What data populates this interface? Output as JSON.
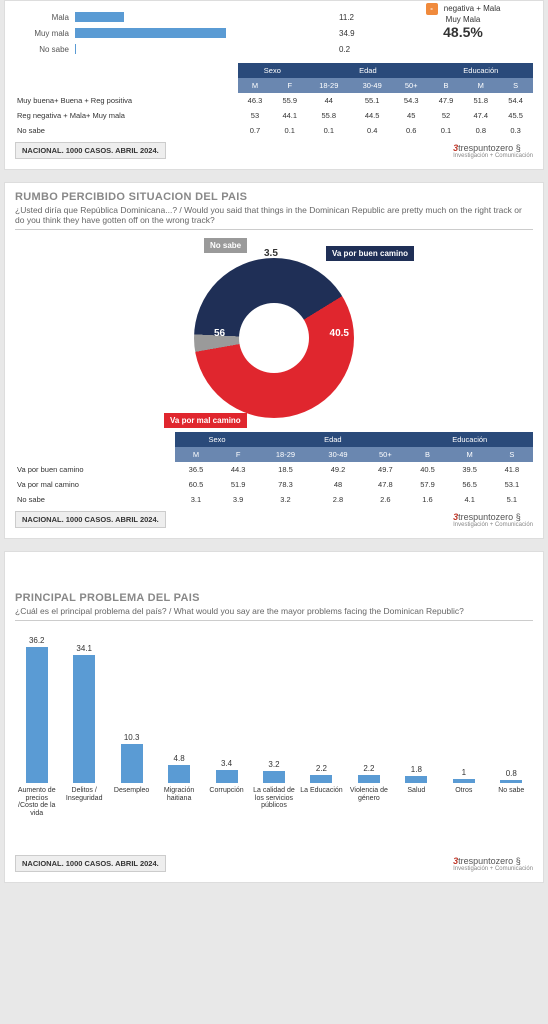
{
  "colors": {
    "bar_blue": "#5a9bd4",
    "donut_red": "#e0262e",
    "donut_navy": "#1f2f56",
    "donut_gray": "#9a9a9a",
    "th_dark": "#2a4a7a",
    "th_light": "#6a87b0",
    "orange": "#f08a3c"
  },
  "panel1": {
    "hbars": [
      {
        "label": "Mala",
        "value": 11.2,
        "color": "#5a9bd4"
      },
      {
        "label": "Muy mala",
        "value": 34.9,
        "color": "#5a9bd4"
      },
      {
        "label": "No sabe",
        "value": 0.2,
        "color": "#5a9bd4"
      }
    ],
    "summary": {
      "line1": "negativa + Mala",
      "line2": "Muy Mala",
      "value": "48.5%"
    },
    "table": {
      "groups": [
        "Sexo",
        "Edad",
        "Educación"
      ],
      "subs": [
        "M",
        "F",
        "18-29",
        "30-49",
        "50+",
        "B",
        "M",
        "S"
      ],
      "rows": [
        {
          "label": "Muy buena+ Buena + Reg positiva",
          "vals": [
            46.3,
            55.9,
            44,
            55.1,
            54.3,
            47.9,
            51.8,
            54.4
          ]
        },
        {
          "label": "Reg negativa + Mala+ Muy mala",
          "vals": [
            53,
            44.1,
            55.8,
            44.5,
            45,
            52,
            47.4,
            45.5
          ]
        },
        {
          "label": "No sabe",
          "vals": [
            0.7,
            0.1,
            0.1,
            0.4,
            0.6,
            0.1,
            0.8,
            0.3
          ]
        }
      ]
    },
    "footer": "NACIONAL. 1000 CASOS. ABRIL 2024."
  },
  "panel2": {
    "title": "RUMBO PERCIBIDO SITUACION DEL PAIS",
    "sub": "¿Usted diría que República Dominicana...? / Would you said that things in the Dominican Republic are pretty much on the right track or do you think they have gotten off on the wrong track?",
    "donut": {
      "segments": [
        {
          "name": "Va por mal camino",
          "value": 56,
          "color": "#e0262e"
        },
        {
          "name": "Va por buen camino",
          "value": 40.5,
          "color": "#1f2f56"
        },
        {
          "name": "No sabe",
          "value": 3.5,
          "color": "#9a9a9a"
        }
      ]
    },
    "table": {
      "groups": [
        "Sexo",
        "Edad",
        "Educación"
      ],
      "subs": [
        "M",
        "F",
        "18-29",
        "30-49",
        "50+",
        "B",
        "M",
        "S"
      ],
      "rows": [
        {
          "label": "Va por buen camino",
          "vals": [
            36.5,
            44.3,
            18.5,
            49.2,
            49.7,
            40.5,
            39.5,
            41.8
          ]
        },
        {
          "label": "Va por mal camino",
          "vals": [
            60.5,
            51.9,
            78.3,
            48,
            47.8,
            57.9,
            56.5,
            53.1
          ]
        },
        {
          "label": "No sabe",
          "vals": [
            3.1,
            3.9,
            3.2,
            2.8,
            2.6,
            1.6,
            4.1,
            5.1
          ]
        }
      ]
    },
    "footer": "NACIONAL. 1000 CASOS. ABRIL 2024."
  },
  "panel3": {
    "title": "PRINCIPAL PROBLEMA DEL PAIS",
    "sub": "¿Cuál es el principal problema del país? / What would you say are the mayor problems facing the Dominican Republic?",
    "bars": {
      "color": "#5a9bd4",
      "max": 40,
      "items": [
        {
          "label": "Aumento de precios /Costo de la vida",
          "value": 36.2
        },
        {
          "label": "Delitos / Inseguridad",
          "value": 34.1
        },
        {
          "label": "Desempleo",
          "value": 10.3
        },
        {
          "label": "Migración haitiana",
          "value": 4.8
        },
        {
          "label": "Corrupción",
          "value": 3.4
        },
        {
          "label": "La calidad de los servicios públicos",
          "value": 3.2
        },
        {
          "label": "La Educación",
          "value": 2.2
        },
        {
          "label": "Violencia de género",
          "value": 2.2
        },
        {
          "label": "Salud",
          "value": 1.8
        },
        {
          "label": "Otros",
          "value": 1
        },
        {
          "label": "No sabe",
          "value": 0.8
        }
      ]
    },
    "footer": "NACIONAL. 1000 CASOS. ABRIL 2024."
  },
  "logo": {
    "brand": "trespuntozero",
    "tag": "Investigación + Comunicación"
  }
}
